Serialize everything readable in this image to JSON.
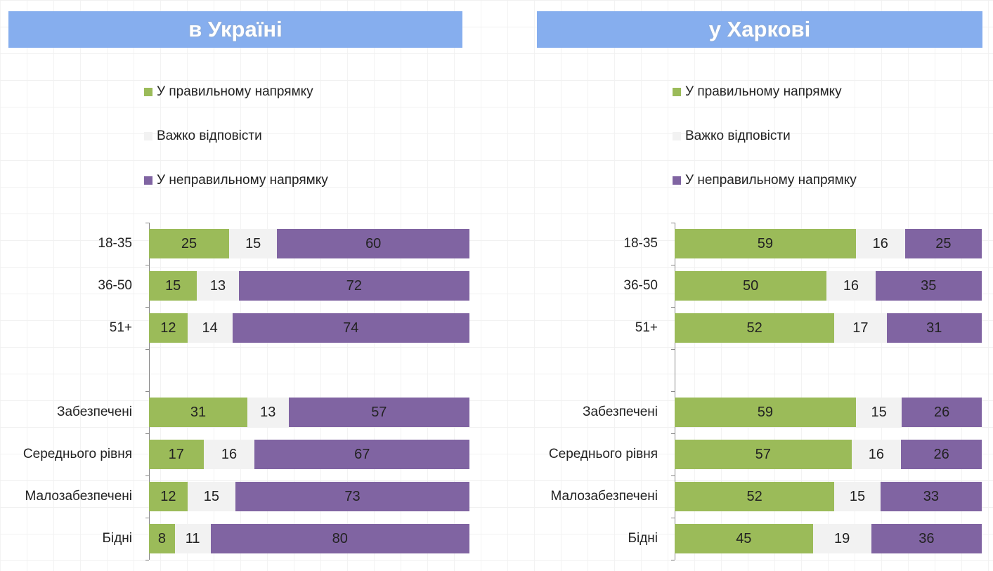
{
  "chart_data": [
    {
      "type": "bar",
      "orientation": "horizontal",
      "stacked": "100%",
      "title": "в Україні",
      "legend_position": "top",
      "categories": [
        "18-35",
        "36-50",
        "51+",
        "",
        "Забезпечені",
        "Середнього рівня",
        "Малозабезпечені",
        "Бідні"
      ],
      "series": [
        {
          "name": "У правильному напрямку",
          "color": "#9bbb59",
          "values": [
            25,
            15,
            12,
            null,
            31,
            17,
            12,
            8
          ]
        },
        {
          "name": "Важко відповісти",
          "color": "#f2f2f2",
          "values": [
            15,
            13,
            14,
            null,
            13,
            16,
            15,
            11
          ]
        },
        {
          "name": "У неправильному напрямку",
          "color": "#8064a2",
          "values": [
            60,
            72,
            74,
            null,
            57,
            67,
            73,
            80
          ]
        }
      ]
    },
    {
      "type": "bar",
      "orientation": "horizontal",
      "stacked": "100%",
      "title": "у Харкові",
      "legend_position": "top",
      "categories": [
        "18-35",
        "36-50",
        "51+",
        "",
        "Забезпечені",
        "Середнього рівня",
        "Малозабезпечені",
        "Бідні"
      ],
      "series": [
        {
          "name": "У правильному напрямку",
          "color": "#9bbb59",
          "values": [
            59,
            50,
            52,
            null,
            59,
            57,
            52,
            45
          ]
        },
        {
          "name": "Важко відповісти",
          "color": "#f2f2f2",
          "values": [
            16,
            16,
            17,
            null,
            15,
            16,
            15,
            19
          ]
        },
        {
          "name": "У неправильному напрямку",
          "color": "#8064a2",
          "values": [
            25,
            35,
            31,
            null,
            26,
            26,
            33,
            36
          ]
        }
      ]
    }
  ]
}
